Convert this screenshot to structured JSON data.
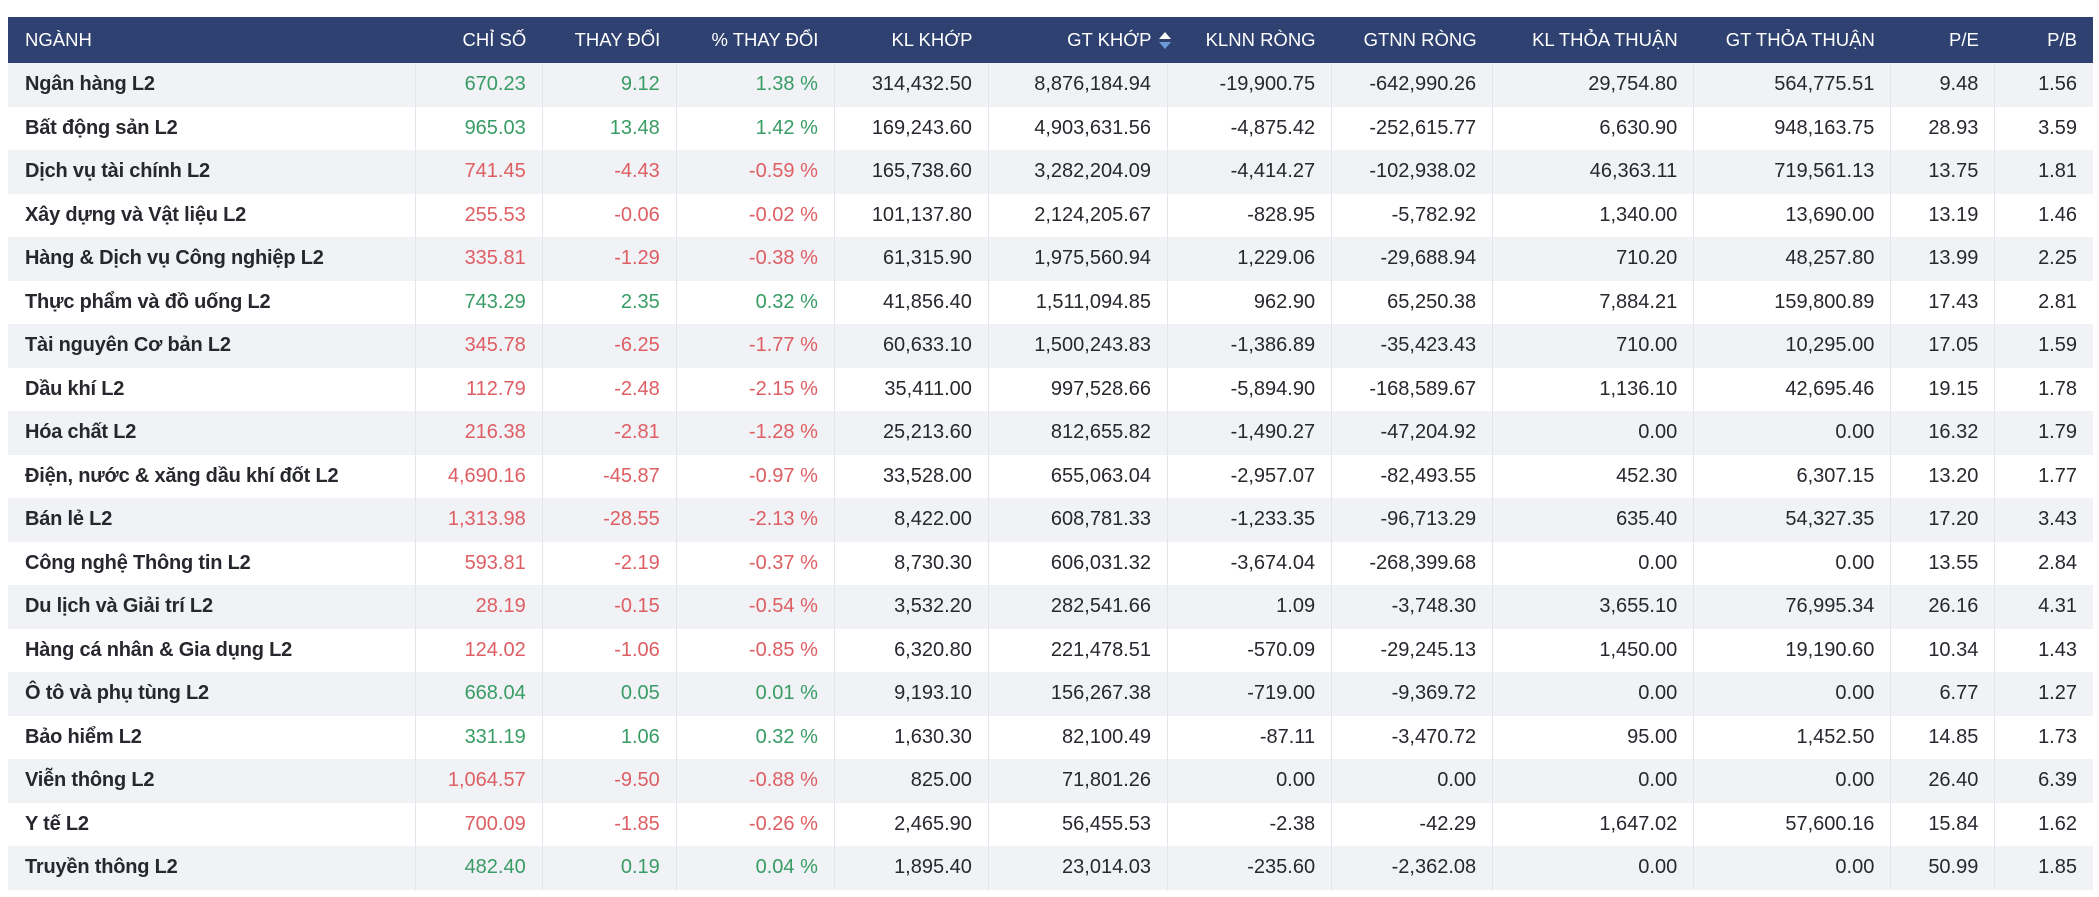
{
  "colors": {
    "header_bg": "#2e4170",
    "header_text": "#ffffff",
    "positive": "#389c64",
    "negative": "#dd5e63",
    "row_stripe": "#f1f2f6",
    "row_white": "#ffffff",
    "divider": "#e4e5ea",
    "body_text": "#26282e",
    "sort_icon_up": "#ffffff",
    "sort_icon_down": "#6d9bd8"
  },
  "sort": {
    "column": "matched_value",
    "icon": "sort-asc-desc-icon"
  },
  "table": {
    "columns": [
      {
        "key": "sector",
        "label": "NGÀNH",
        "align": "left",
        "colored": false,
        "sorted": false
      },
      {
        "key": "index",
        "label": "CHỈ SỐ",
        "align": "right",
        "colored": true,
        "sorted": false
      },
      {
        "key": "change",
        "label": "THAY ĐỔI",
        "align": "right",
        "colored": true,
        "sorted": false
      },
      {
        "key": "pct_change",
        "label": "% THAY ĐỔI",
        "align": "right",
        "colored": true,
        "sorted": false
      },
      {
        "key": "matched_volume",
        "label": "KL KHỚP",
        "align": "right",
        "colored": false,
        "sorted": false
      },
      {
        "key": "matched_value",
        "label": "GT KHỚP",
        "align": "right",
        "colored": false,
        "sorted": true
      },
      {
        "key": "foreign_net_volume",
        "label": "KLNN RÒNG",
        "align": "right",
        "colored": false,
        "sorted": false
      },
      {
        "key": "foreign_net_value",
        "label": "GTNN RÒNG",
        "align": "right",
        "colored": false,
        "sorted": false
      },
      {
        "key": "deal_volume",
        "label": "KL THỎA THUẬN",
        "align": "right",
        "colored": false,
        "sorted": false
      },
      {
        "key": "deal_value",
        "label": "GT THỎA THUẬN",
        "align": "right",
        "colored": false,
        "sorted": false
      },
      {
        "key": "pe",
        "label": "P/E",
        "align": "right",
        "colored": false,
        "sorted": false
      },
      {
        "key": "pb",
        "label": "P/B",
        "align": "right",
        "colored": false,
        "sorted": false
      }
    ],
    "rows": [
      {
        "sector": "Ngân hàng L2",
        "index": "670.23",
        "change": "9.12",
        "pct_change": "1.38 %",
        "matched_volume": "314,432.50",
        "matched_value": "8,876,184.94",
        "foreign_net_volume": "-19,900.75",
        "foreign_net_value": "-642,990.26",
        "deal_volume": "29,754.80",
        "deal_value": "564,775.51",
        "pe": "9.48",
        "pb": "1.56",
        "trend": "up"
      },
      {
        "sector": "Bất động sản L2",
        "index": "965.03",
        "change": "13.48",
        "pct_change": "1.42 %",
        "matched_volume": "169,243.60",
        "matched_value": "4,903,631.56",
        "foreign_net_volume": "-4,875.42",
        "foreign_net_value": "-252,615.77",
        "deal_volume": "6,630.90",
        "deal_value": "948,163.75",
        "pe": "28.93",
        "pb": "3.59",
        "trend": "up"
      },
      {
        "sector": "Dịch vụ tài chính L2",
        "index": "741.45",
        "change": "-4.43",
        "pct_change": "-0.59 %",
        "matched_volume": "165,738.60",
        "matched_value": "3,282,204.09",
        "foreign_net_volume": "-4,414.27",
        "foreign_net_value": "-102,938.02",
        "deal_volume": "46,363.11",
        "deal_value": "719,561.13",
        "pe": "13.75",
        "pb": "1.81",
        "trend": "down"
      },
      {
        "sector": "Xây dựng và Vật liệu L2",
        "index": "255.53",
        "change": "-0.06",
        "pct_change": "-0.02 %",
        "matched_volume": "101,137.80",
        "matched_value": "2,124,205.67",
        "foreign_net_volume": "-828.95",
        "foreign_net_value": "-5,782.92",
        "deal_volume": "1,340.00",
        "deal_value": "13,690.00",
        "pe": "13.19",
        "pb": "1.46",
        "trend": "down"
      },
      {
        "sector": "Hàng & Dịch vụ Công nghiệp L2",
        "index": "335.81",
        "change": "-1.29",
        "pct_change": "-0.38 %",
        "matched_volume": "61,315.90",
        "matched_value": "1,975,560.94",
        "foreign_net_volume": "1,229.06",
        "foreign_net_value": "-29,688.94",
        "deal_volume": "710.20",
        "deal_value": "48,257.80",
        "pe": "13.99",
        "pb": "2.25",
        "trend": "down"
      },
      {
        "sector": "Thực phẩm và đồ uống L2",
        "index": "743.29",
        "change": "2.35",
        "pct_change": "0.32 %",
        "matched_volume": "41,856.40",
        "matched_value": "1,511,094.85",
        "foreign_net_volume": "962.90",
        "foreign_net_value": "65,250.38",
        "deal_volume": "7,884.21",
        "deal_value": "159,800.89",
        "pe": "17.43",
        "pb": "2.81",
        "trend": "up"
      },
      {
        "sector": "Tài nguyên Cơ bản L2",
        "index": "345.78",
        "change": "-6.25",
        "pct_change": "-1.77 %",
        "matched_volume": "60,633.10",
        "matched_value": "1,500,243.83",
        "foreign_net_volume": "-1,386.89",
        "foreign_net_value": "-35,423.43",
        "deal_volume": "710.00",
        "deal_value": "10,295.00",
        "pe": "17.05",
        "pb": "1.59",
        "trend": "down"
      },
      {
        "sector": "Dầu khí L2",
        "index": "112.79",
        "change": "-2.48",
        "pct_change": "-2.15 %",
        "matched_volume": "35,411.00",
        "matched_value": "997,528.66",
        "foreign_net_volume": "-5,894.90",
        "foreign_net_value": "-168,589.67",
        "deal_volume": "1,136.10",
        "deal_value": "42,695.46",
        "pe": "19.15",
        "pb": "1.78",
        "trend": "down"
      },
      {
        "sector": "Hóa chất L2",
        "index": "216.38",
        "change": "-2.81",
        "pct_change": "-1.28 %",
        "matched_volume": "25,213.60",
        "matched_value": "812,655.82",
        "foreign_net_volume": "-1,490.27",
        "foreign_net_value": "-47,204.92",
        "deal_volume": "0.00",
        "deal_value": "0.00",
        "pe": "16.32",
        "pb": "1.79",
        "trend": "down"
      },
      {
        "sector": "Điện, nước & xăng dầu khí đốt L2",
        "index": "4,690.16",
        "change": "-45.87",
        "pct_change": "-0.97 %",
        "matched_volume": "33,528.00",
        "matched_value": "655,063.04",
        "foreign_net_volume": "-2,957.07",
        "foreign_net_value": "-82,493.55",
        "deal_volume": "452.30",
        "deal_value": "6,307.15",
        "pe": "13.20",
        "pb": "1.77",
        "trend": "down"
      },
      {
        "sector": "Bán lẻ L2",
        "index": "1,313.98",
        "change": "-28.55",
        "pct_change": "-2.13 %",
        "matched_volume": "8,422.00",
        "matched_value": "608,781.33",
        "foreign_net_volume": "-1,233.35",
        "foreign_net_value": "-96,713.29",
        "deal_volume": "635.40",
        "deal_value": "54,327.35",
        "pe": "17.20",
        "pb": "3.43",
        "trend": "down"
      },
      {
        "sector": "Công nghệ Thông tin L2",
        "index": "593.81",
        "change": "-2.19",
        "pct_change": "-0.37 %",
        "matched_volume": "8,730.30",
        "matched_value": "606,031.32",
        "foreign_net_volume": "-3,674.04",
        "foreign_net_value": "-268,399.68",
        "deal_volume": "0.00",
        "deal_value": "0.00",
        "pe": "13.55",
        "pb": "2.84",
        "trend": "down"
      },
      {
        "sector": "Du lịch và Giải trí L2",
        "index": "28.19",
        "change": "-0.15",
        "pct_change": "-0.54 %",
        "matched_volume": "3,532.20",
        "matched_value": "282,541.66",
        "foreign_net_volume": "1.09",
        "foreign_net_value": "-3,748.30",
        "deal_volume": "3,655.10",
        "deal_value": "76,995.34",
        "pe": "26.16",
        "pb": "4.31",
        "trend": "down"
      },
      {
        "sector": "Hàng cá nhân & Gia dụng L2",
        "index": "124.02",
        "change": "-1.06",
        "pct_change": "-0.85 %",
        "matched_volume": "6,320.80",
        "matched_value": "221,478.51",
        "foreign_net_volume": "-570.09",
        "foreign_net_value": "-29,245.13",
        "deal_volume": "1,450.00",
        "deal_value": "19,190.60",
        "pe": "10.34",
        "pb": "1.43",
        "trend": "down"
      },
      {
        "sector": "Ô tô và phụ tùng L2",
        "index": "668.04",
        "change": "0.05",
        "pct_change": "0.01 %",
        "matched_volume": "9,193.10",
        "matched_value": "156,267.38",
        "foreign_net_volume": "-719.00",
        "foreign_net_value": "-9,369.72",
        "deal_volume": "0.00",
        "deal_value": "0.00",
        "pe": "6.77",
        "pb": "1.27",
        "trend": "up"
      },
      {
        "sector": "Bảo hiểm L2",
        "index": "331.19",
        "change": "1.06",
        "pct_change": "0.32 %",
        "matched_volume": "1,630.30",
        "matched_value": "82,100.49",
        "foreign_net_volume": "-87.11",
        "foreign_net_value": "-3,470.72",
        "deal_volume": "95.00",
        "deal_value": "1,452.50",
        "pe": "14.85",
        "pb": "1.73",
        "trend": "up"
      },
      {
        "sector": "Viễn thông L2",
        "index": "1,064.57",
        "change": "-9.50",
        "pct_change": "-0.88 %",
        "matched_volume": "825.00",
        "matched_value": "71,801.26",
        "foreign_net_volume": "0.00",
        "foreign_net_value": "0.00",
        "deal_volume": "0.00",
        "deal_value": "0.00",
        "pe": "26.40",
        "pb": "6.39",
        "trend": "down"
      },
      {
        "sector": "Y tế L2",
        "index": "700.09",
        "change": "-1.85",
        "pct_change": "-0.26 %",
        "matched_volume": "2,465.90",
        "matched_value": "56,455.53",
        "foreign_net_volume": "-2.38",
        "foreign_net_value": "-42.29",
        "deal_volume": "1,647.02",
        "deal_value": "57,600.16",
        "pe": "15.84",
        "pb": "1.62",
        "trend": "down"
      },
      {
        "sector": "Truyền thông L2",
        "index": "482.40",
        "change": "0.19",
        "pct_change": "0.04 %",
        "matched_volume": "1,895.40",
        "matched_value": "23,014.03",
        "foreign_net_volume": "-235.60",
        "foreign_net_value": "-2,362.08",
        "deal_volume": "0.00",
        "deal_value": "0.00",
        "pe": "50.99",
        "pb": "1.85",
        "trend": "up"
      }
    ]
  }
}
